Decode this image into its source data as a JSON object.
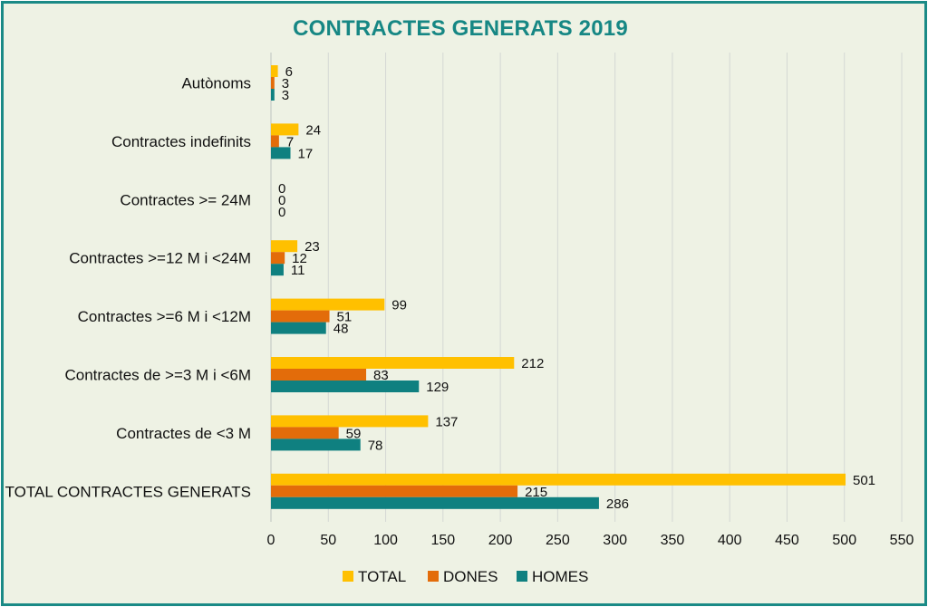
{
  "colors": {
    "frame_border": "#1a8a86",
    "background": "#eef2e4",
    "title": "#168784",
    "gridline": "#d4d8d4"
  },
  "chart_data": {
    "type": "bar",
    "orientation": "horizontal",
    "title": "CONTRACTES GENERATS 2019",
    "categories": [
      "Autònoms",
      "Contractes indefinits",
      "Contractes  >= 24M",
      "Contractes  >=12 M i <24M",
      "Contractes  >=6 M i <12M",
      "Contractes de >=3 M i <6M",
      "Contractes de <3 M",
      "TOTAL CONTRACTES GENERATS"
    ],
    "series": [
      {
        "name": "TOTAL",
        "color": "#ffc000",
        "values": [
          6,
          24,
          0,
          23,
          99,
          212,
          137,
          501
        ]
      },
      {
        "name": "DONES",
        "color": "#e36c0a",
        "values": [
          3,
          7,
          0,
          12,
          51,
          83,
          59,
          215
        ]
      },
      {
        "name": "HOMES",
        "color": "#0f8080",
        "values": [
          3,
          17,
          0,
          11,
          48,
          129,
          78,
          286
        ]
      }
    ],
    "xlim": [
      0,
      550
    ],
    "xticks": [
      0,
      50,
      100,
      150,
      200,
      250,
      300,
      350,
      400,
      450,
      500,
      550
    ],
    "grid": true,
    "legend_position": "bottom"
  }
}
